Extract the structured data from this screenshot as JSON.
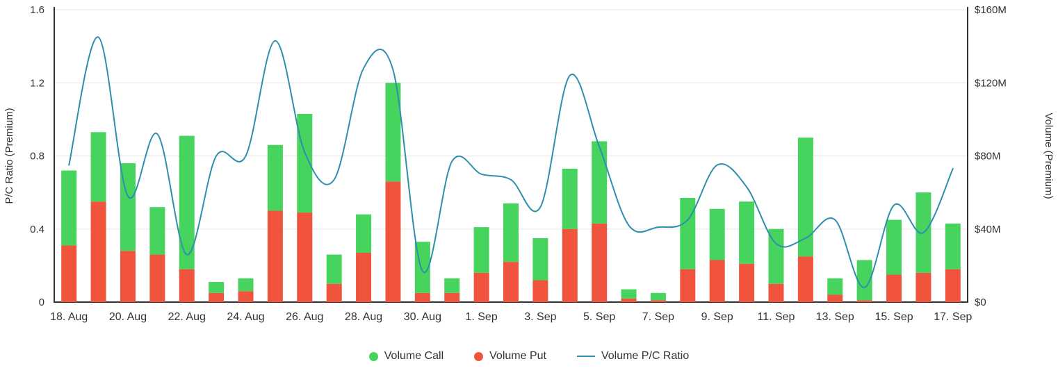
{
  "chart_data": {
    "type": "combo",
    "categories": [
      "18. Aug",
      "19. Aug",
      "20. Aug",
      "21. Aug",
      "22. Aug",
      "23. Aug",
      "24. Aug",
      "25. Aug",
      "26. Aug",
      "27. Aug",
      "28. Aug",
      "29. Aug",
      "30. Aug",
      "31. Aug",
      "1. Sep",
      "2. Sep",
      "3. Sep",
      "4. Sep",
      "5. Sep",
      "6. Sep",
      "7. Sep",
      "8. Sep",
      "9. Sep",
      "10. Sep",
      "11. Sep",
      "12. Sep",
      "13. Sep",
      "14. Sep",
      "15. Sep",
      "16. Sep",
      "17. Sep"
    ],
    "series": [
      {
        "name": "Volume Call",
        "type": "bar",
        "stack": "volume",
        "color": "#46d35e",
        "values": [
          41,
          38,
          48,
          26,
          73,
          6,
          7,
          36,
          54,
          16,
          21,
          54,
          28,
          8,
          25,
          32,
          23,
          33,
          45,
          5,
          4,
          39,
          28,
          34,
          30,
          65,
          9,
          22,
          30,
          44,
          25
        ]
      },
      {
        "name": "Volume Put",
        "type": "bar",
        "stack": "volume",
        "color": "#f0543c",
        "values": [
          31,
          55,
          28,
          26,
          18,
          5,
          6,
          50,
          49,
          10,
          27,
          66,
          5,
          5,
          16,
          22,
          12,
          40,
          43,
          2,
          1,
          18,
          23,
          21,
          10,
          25,
          4,
          1,
          15,
          16,
          18
        ]
      },
      {
        "name": "Volume P/C Ratio",
        "type": "line",
        "color": "#2e8fad",
        "values": [
          0.75,
          1.45,
          0.58,
          0.92,
          0.26,
          0.8,
          0.8,
          1.43,
          0.82,
          0.67,
          1.28,
          1.27,
          0.17,
          0.77,
          0.7,
          0.67,
          0.52,
          1.24,
          0.85,
          0.42,
          0.41,
          0.45,
          0.75,
          0.63,
          0.32,
          0.35,
          0.45,
          0.08,
          0.53,
          0.38,
          0.73
        ]
      }
    ],
    "axes": {
      "left": {
        "title": "P/C Ratio (Premium)",
        "min": 0,
        "max": 1.6,
        "tick_values": [
          0,
          0.4,
          0.8,
          1.2,
          1.6
        ],
        "tick_labels": [
          "0",
          "0.4",
          "0.8",
          "1.2",
          "1.6"
        ]
      },
      "right": {
        "title": "Volume (Premium)",
        "min": 0,
        "max": 160,
        "tick_values": [
          0,
          40,
          80,
          120,
          160
        ],
        "tick_labels": [
          "$0",
          "$40M",
          "$80M",
          "$120M",
          "$160M"
        ],
        "unit": "$M"
      },
      "x": {
        "label_every": 2
      }
    },
    "legend": [
      {
        "label": "Volume Call",
        "marker": "circle",
        "color": "#46d35e"
      },
      {
        "label": "Volume Put",
        "marker": "circle",
        "color": "#f0543c"
      },
      {
        "label": "Volume P/C Ratio",
        "marker": "line",
        "color": "#2e8fad"
      }
    ],
    "grid": true,
    "legend_position": "bottom-center"
  },
  "colors": {
    "grid": "#e6e6e6",
    "axis": "#333333",
    "text": "#333333",
    "background": "#ffffff"
  }
}
